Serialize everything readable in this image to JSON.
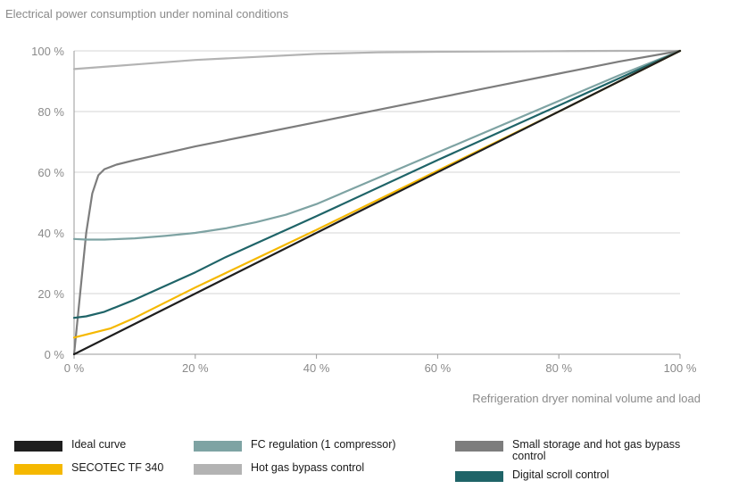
{
  "chart_data": {
    "type": "line",
    "title": "Electrical power consumption under nominal conditions",
    "xlabel": "Refrigeration dryer nominal volume and load",
    "ylabel": "",
    "xlim": [
      0,
      100
    ],
    "ylim": [
      0,
      100
    ],
    "x_ticks": [
      "0 %",
      "20 %",
      "40 %",
      "60 %",
      "80 %",
      "100 %"
    ],
    "y_ticks": [
      "0 %",
      "20 %",
      "40 %",
      "60 %",
      "80 %",
      "100 %"
    ],
    "grid": "horizontal",
    "legend_position": "bottom",
    "series": [
      {
        "name": "Ideal curve",
        "color": "#1e1e1e",
        "x": [
          0,
          100
        ],
        "y": [
          0,
          100
        ]
      },
      {
        "name": "SECOTEC TF 340",
        "color": "#f5b800",
        "x": [
          0,
          3,
          6,
          10,
          15,
          20,
          30,
          40,
          60,
          80,
          100
        ],
        "y": [
          5.5,
          7,
          8.5,
          12,
          17,
          22,
          31.5,
          41,
          60.5,
          80,
          100
        ]
      },
      {
        "name": "FC regulation  (1 compressor)",
        "color": "#7ea3a3",
        "x": [
          0,
          2,
          5,
          10,
          15,
          20,
          25,
          30,
          35,
          40,
          50,
          60,
          70,
          80,
          90,
          100
        ],
        "y": [
          38,
          37.8,
          37.8,
          38.2,
          39,
          40,
          41.5,
          43.5,
          46,
          49.5,
          58,
          66.5,
          75,
          83.5,
          92,
          100
        ]
      },
      {
        "name": "Hot gas bypass control",
        "color": "#b3b3b3",
        "x": [
          0,
          10,
          20,
          30,
          40,
          50,
          60,
          70,
          80,
          90,
          100
        ],
        "y": [
          94,
          95.5,
          97,
          98,
          99,
          99.5,
          99.7,
          99.8,
          99.9,
          100,
          100
        ]
      },
      {
        "name": "Small storage and hot gas bypass control",
        "color": "#7d7d7d",
        "x": [
          0,
          1,
          2,
          3,
          4,
          5,
          7,
          10,
          20,
          30,
          40,
          50,
          60,
          70,
          80,
          90,
          100
        ],
        "y": [
          0,
          20,
          40,
          53,
          59,
          61,
          62.5,
          64,
          68.5,
          72.5,
          76.5,
          80.5,
          84.5,
          88.5,
          92.5,
          96.5,
          100
        ]
      },
      {
        "name": "Digital scroll control",
        "color": "#1f6468",
        "x": [
          0,
          2,
          5,
          10,
          15,
          20,
          25,
          30,
          40,
          60,
          80,
          100
        ],
        "y": [
          12,
          12.5,
          14,
          18,
          22.5,
          27,
          32,
          36.5,
          45.5,
          64,
          82,
          100
        ]
      }
    ]
  }
}
